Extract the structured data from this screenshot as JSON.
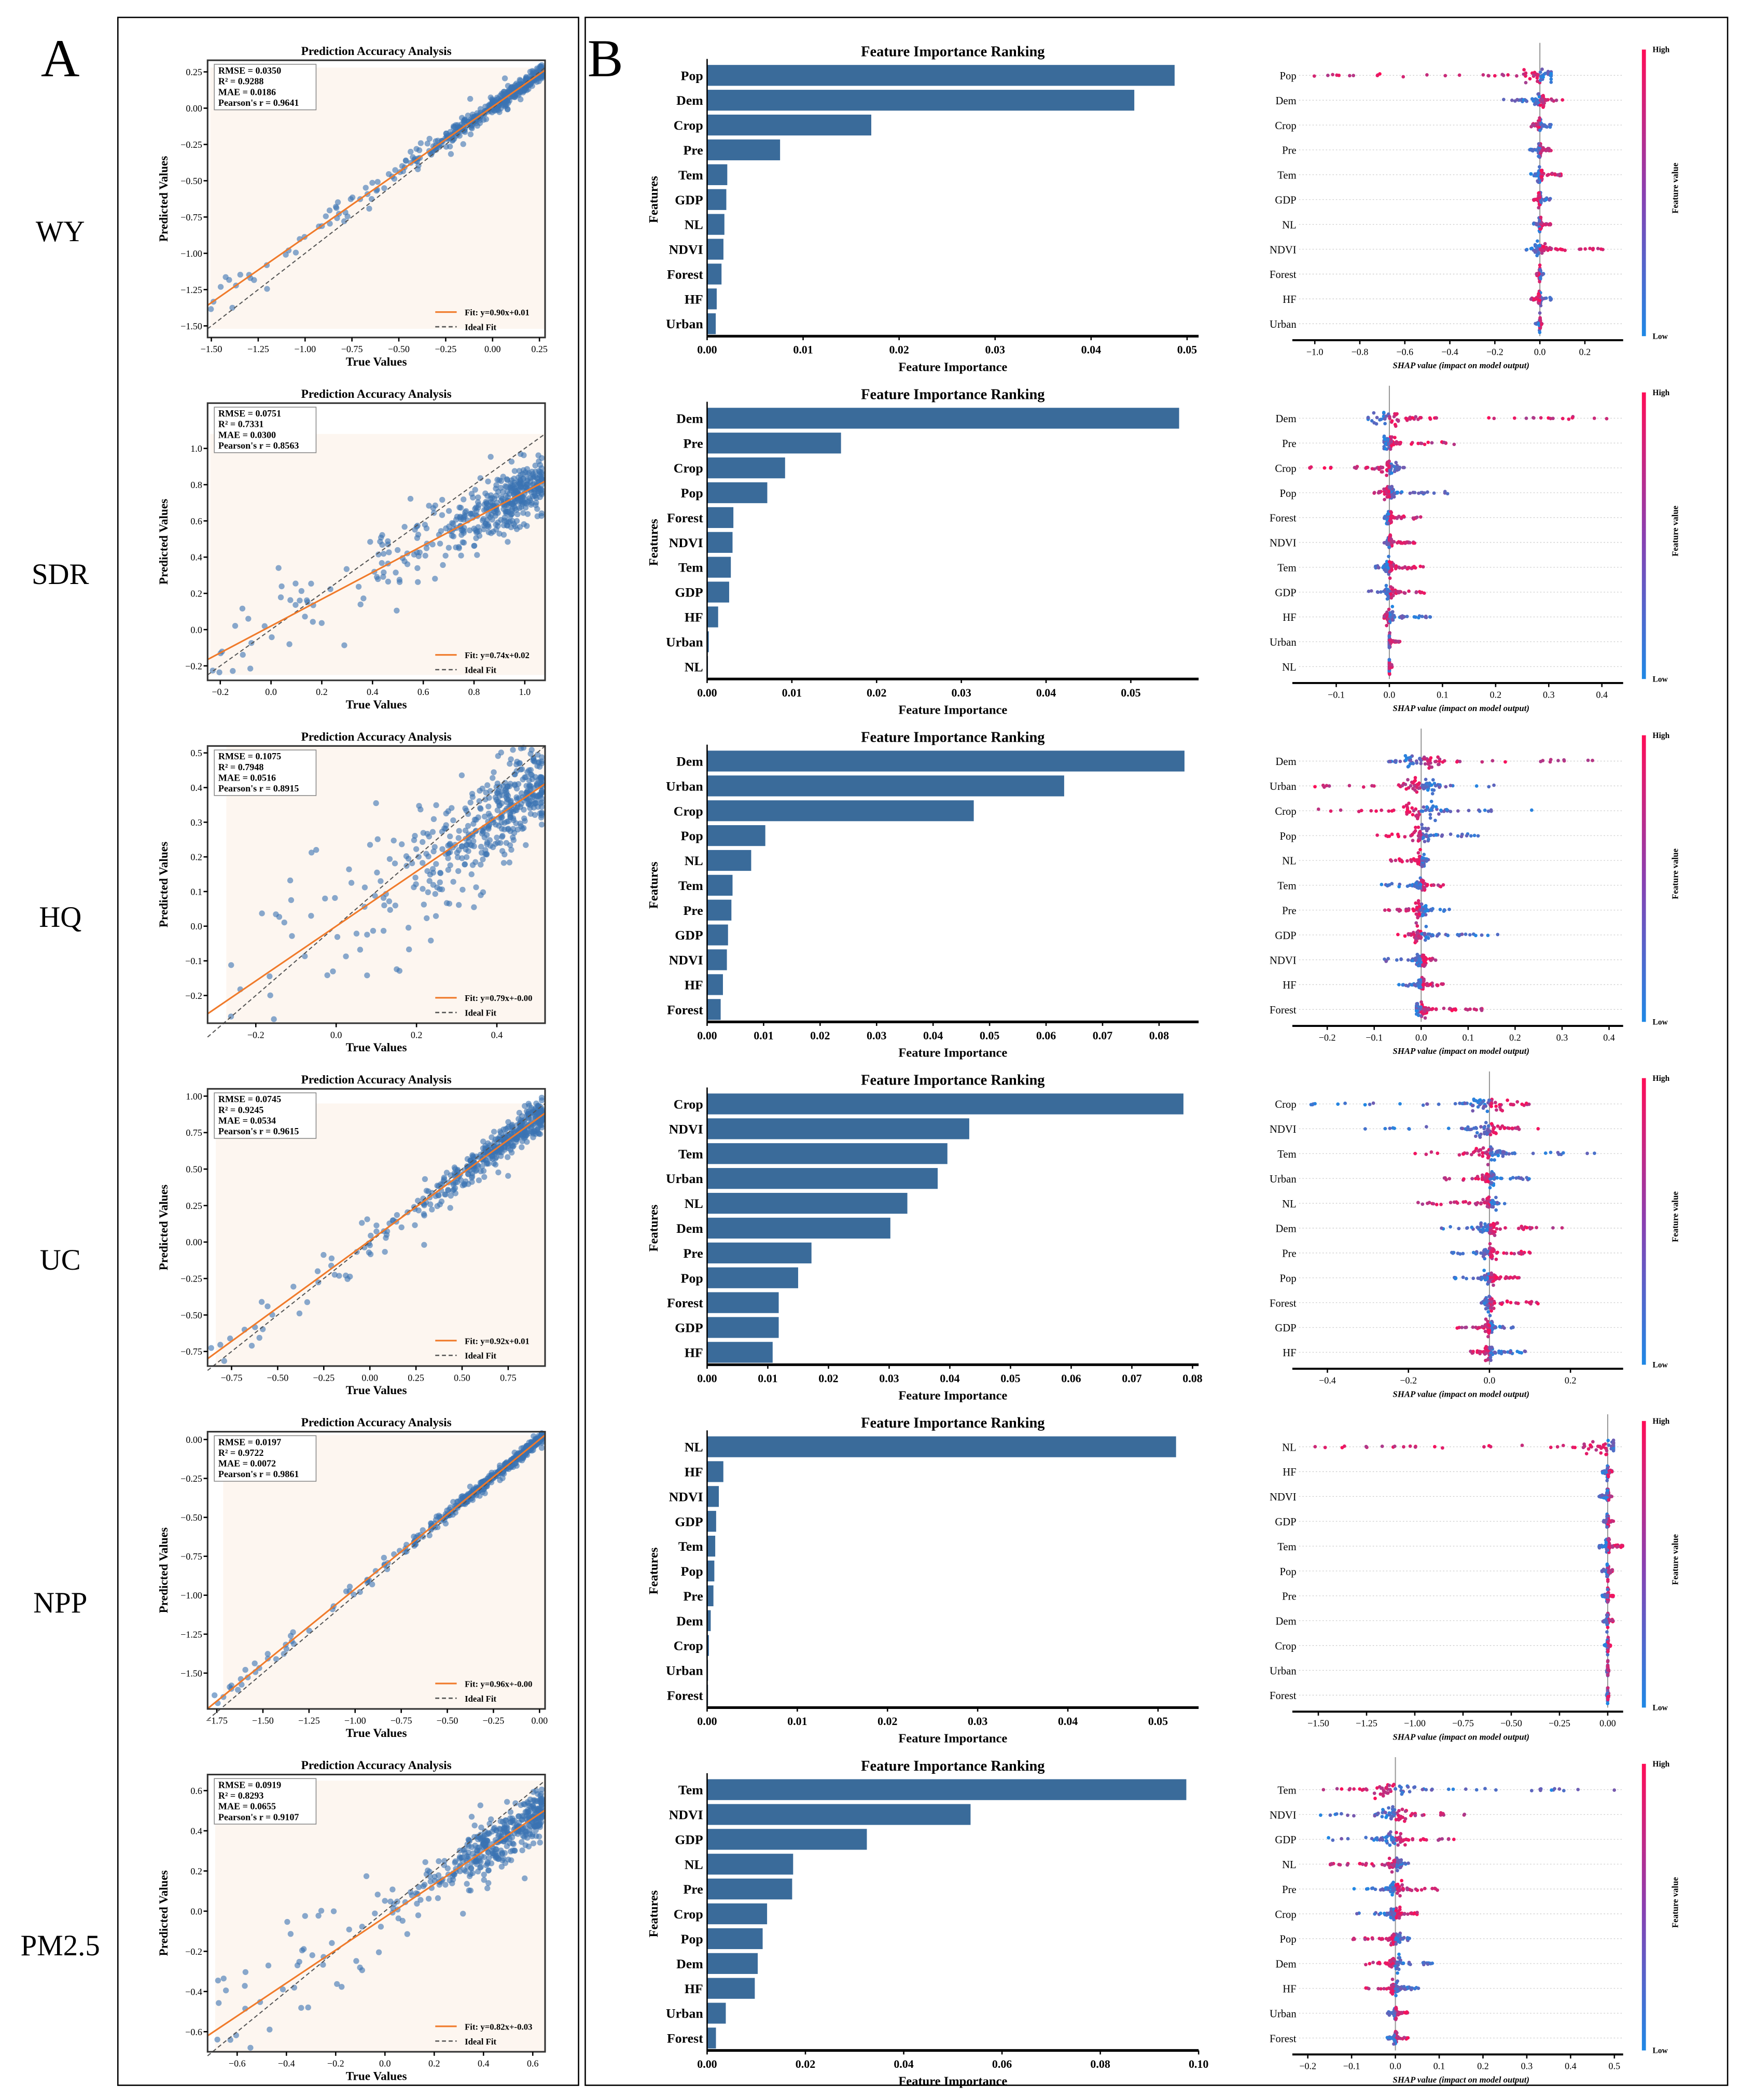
{
  "panel_labels": {
    "a": "A",
    "b": "B"
  },
  "common": {
    "scatter_title": "Prediction Accuracy Analysis",
    "scatter_xlabel": "True Values",
    "scatter_ylabel": "Predicted Values",
    "ideal_label": "Ideal Fit",
    "bar_title": "Feature Importance Ranking",
    "bar_xlabel": "Feature Importance",
    "bar_ylabel": "Features",
    "shap_xlabel": "SHAP value (impact on model output)",
    "colorbar_high": "High",
    "colorbar_low": "Low",
    "colorbar_label": "Feature value"
  },
  "colors": {
    "bar": "#3a6b9a",
    "point": "#3b73b3",
    "fit": "#f07a2a",
    "ideal": "#555555",
    "shap_low": "#1e88e5",
    "shap_high": "#ff0d57",
    "plot_bg": "#fdf6f0"
  },
  "chart_data": [
    {
      "row_label": "WY",
      "type": "scatter",
      "stats": [
        "RMSE = 0.0350",
        "R² = 0.9288",
        "MAE = 0.0186",
        "Pearson's r = 0.9641"
      ],
      "fit": {
        "slope": 0.9,
        "intercept": 0.01,
        "label": "Fit: y=0.90x+0.01"
      },
      "xlim": [
        -1.52,
        0.28
      ],
      "ylim": [
        -1.58,
        0.33
      ],
      "xticks": [
        -1.5,
        -1.25,
        -1.0,
        -0.75,
        -0.5,
        -0.25,
        0.0,
        0.25
      ],
      "yticks": [
        -1.5,
        -1.25,
        -1.0,
        -0.75,
        -0.5,
        -0.25,
        0.0,
        0.25
      ],
      "tick_decimals": 2,
      "spread": 0.05,
      "importance": {
        "features": [
          "Pop",
          "Dem",
          "Crop",
          "Pre",
          "Tem",
          "GDP",
          "NL",
          "NDVI",
          "Forest",
          "HF",
          "Urban"
        ],
        "values": [
          0.0487,
          0.0445,
          0.0171,
          0.0076,
          0.0021,
          0.002,
          0.0018,
          0.0017,
          0.0015,
          0.001,
          0.0009
        ],
        "xlim": [
          0,
          0.0512
        ],
        "xticks": [
          0,
          0.01,
          0.02,
          0.03,
          0.04,
          0.05
        ],
        "tick_decimals": 2
      },
      "shap": {
        "features": [
          "Pop",
          "Dem",
          "Crop",
          "Pre",
          "Tem",
          "GDP",
          "NL",
          "NDVI",
          "Forest",
          "HF",
          "Urban"
        ],
        "ranges": [
          [
            -1.02,
            0.05
          ],
          [
            -0.17,
            0.12
          ],
          [
            -0.04,
            0.05
          ],
          [
            -0.05,
            0.05
          ],
          [
            -0.04,
            0.1
          ],
          [
            -0.03,
            0.05
          ],
          [
            -0.03,
            0.05
          ],
          [
            -0.06,
            0.3
          ],
          [
            -0.02,
            0.02
          ],
          [
            -0.04,
            0.05
          ],
          [
            -0.02,
            0.01
          ]
        ],
        "high_side": [
          "-",
          "+",
          "-",
          "+",
          "+",
          "-",
          "+",
          "+",
          "-",
          "-",
          "+"
        ],
        "xlim": [
          -1.07,
          0.37
        ],
        "xticks": [
          -1.0,
          -0.8,
          -0.6,
          -0.4,
          -0.2,
          0.0,
          0.2
        ],
        "tick_decimals": 1
      }
    },
    {
      "row_label": "SDR",
      "type": "scatter",
      "stats": [
        "RMSE = 0.0751",
        "R² = 0.7331",
        "MAE = 0.0300",
        "Pearson's r = 0.8563"
      ],
      "fit": {
        "slope": 0.74,
        "intercept": 0.02,
        "label": "Fit: y=0.74x+0.02"
      },
      "xlim": [
        -0.25,
        1.08
      ],
      "ylim": [
        -0.28,
        1.25
      ],
      "xticks": [
        -0.2,
        0.0,
        0.2,
        0.4,
        0.6,
        0.8,
        1.0
      ],
      "yticks": [
        -0.2,
        0.0,
        0.2,
        0.4,
        0.6,
        0.8,
        1.0
      ],
      "tick_decimals": 1,
      "spread": 0.13,
      "importance": {
        "features": [
          "Dem",
          "Pre",
          "Crop",
          "Pop",
          "Forest",
          "NDVI",
          "Tem",
          "GDP",
          "HF",
          "Urban",
          "NL"
        ],
        "values": [
          0.0557,
          0.0158,
          0.0092,
          0.0071,
          0.0031,
          0.003,
          0.0028,
          0.0026,
          0.0013,
          0.0002,
          0.0001
        ],
        "xlim": [
          0,
          0.058
        ],
        "xticks": [
          0,
          0.01,
          0.02,
          0.03,
          0.04,
          0.05
        ],
        "tick_decimals": 2
      },
      "shap": {
        "features": [
          "Dem",
          "Pre",
          "Crop",
          "Pop",
          "Forest",
          "NDVI",
          "Tem",
          "GDP",
          "HF",
          "Urban",
          "NL"
        ],
        "ranges": [
          [
            -0.04,
            0.41
          ],
          [
            -0.01,
            0.13
          ],
          [
            -0.15,
            0.04
          ],
          [
            -0.03,
            0.11
          ],
          [
            -0.01,
            0.06
          ],
          [
            -0.01,
            0.05
          ],
          [
            -0.03,
            0.07
          ],
          [
            -0.04,
            0.07
          ],
          [
            -0.01,
            0.08
          ],
          [
            0.0,
            0.02
          ],
          [
            0.0,
            0.005
          ]
        ],
        "high_side": [
          "+",
          "+",
          "-",
          "-",
          "+",
          "+",
          "+",
          "+",
          "-",
          "+",
          "+"
        ],
        "xlim": [
          -0.17,
          0.44
        ],
        "xticks": [
          -0.1,
          0.0,
          0.1,
          0.2,
          0.3,
          0.4
        ],
        "tick_decimals": 1
      }
    },
    {
      "row_label": "HQ",
      "type": "scatter",
      "stats": [
        "RMSE = 0.1075",
        "R² = 0.7948",
        "MAE = 0.0516",
        "Pearson's r = 0.8915"
      ],
      "fit": {
        "slope": 0.79,
        "intercept": 0.0,
        "label": "Fit: y=0.79x+-0.00"
      },
      "xlim": [
        -0.32,
        0.52
      ],
      "ylim": [
        -0.28,
        0.52
      ],
      "xticks": [
        -0.2,
        0.0,
        0.2,
        0.4
      ],
      "yticks": [
        -0.2,
        -0.1,
        0.0,
        0.1,
        0.2,
        0.3,
        0.4,
        0.5
      ],
      "tick_decimals": 1,
      "spread": 0.12,
      "importance": {
        "features": [
          "Dem",
          "Urban",
          "Crop",
          "Pop",
          "NL",
          "Tem",
          "Pre",
          "GDP",
          "NDVI",
          "HF",
          "Forest"
        ],
        "values": [
          0.0845,
          0.0632,
          0.0472,
          0.0103,
          0.0078,
          0.0045,
          0.0043,
          0.0037,
          0.0035,
          0.0028,
          0.0024
        ],
        "xlim": [
          0,
          0.087
        ],
        "xticks": [
          0,
          0.01,
          0.02,
          0.03,
          0.04,
          0.05,
          0.06,
          0.07,
          0.08
        ],
        "tick_decimals": 2
      },
      "shap": {
        "features": [
          "Dem",
          "Urban",
          "Crop",
          "Pop",
          "NL",
          "Tem",
          "Pre",
          "GDP",
          "NDVI",
          "HF",
          "Forest"
        ],
        "ranges": [
          [
            -0.13,
            0.41
          ],
          [
            -0.23,
            0.17
          ],
          [
            -0.24,
            0.27
          ],
          [
            -0.1,
            0.13
          ],
          [
            -0.07,
            0.02
          ],
          [
            -0.09,
            0.05
          ],
          [
            -0.08,
            0.07
          ],
          [
            -0.06,
            0.19
          ],
          [
            -0.08,
            0.05
          ],
          [
            -0.05,
            0.05
          ],
          [
            -0.01,
            0.14
          ]
        ],
        "high_side": [
          "+",
          "-",
          "-",
          "-",
          "-",
          "+",
          "-",
          "-",
          "+",
          "+",
          "+"
        ],
        "xlim": [
          -0.26,
          0.43
        ],
        "xticks": [
          -0.2,
          -0.1,
          0.0,
          0.1,
          0.2,
          0.3,
          0.4
        ],
        "tick_decimals": 1
      }
    },
    {
      "row_label": "UC",
      "type": "scatter",
      "stats": [
        "RMSE = 0.0745",
        "R² = 0.9245",
        "MAE = 0.0534",
        "Pearson's r = 0.9615"
      ],
      "fit": {
        "slope": 0.92,
        "intercept": 0.01,
        "label": "Fit: y=0.92x+0.01"
      },
      "xlim": [
        -0.88,
        0.95
      ],
      "ylim": [
        -0.85,
        1.05
      ],
      "xticks": [
        -0.75,
        -0.5,
        -0.25,
        0.0,
        0.25,
        0.5,
        0.75
      ],
      "yticks": [
        -0.75,
        -0.5,
        -0.25,
        0.0,
        0.25,
        0.5,
        0.75,
        1.0
      ],
      "tick_decimals": 2,
      "spread": 0.09,
      "importance": {
        "features": [
          "Crop",
          "NDVI",
          "Tem",
          "Urban",
          "NL",
          "Dem",
          "Pre",
          "Pop",
          "Forest",
          "GDP",
          "HF"
        ],
        "values": [
          0.0785,
          0.0432,
          0.0396,
          0.038,
          0.033,
          0.0302,
          0.0172,
          0.015,
          0.0118,
          0.0118,
          0.0108
        ],
        "xlim": [
          0,
          0.081
        ],
        "xticks": [
          0,
          0.01,
          0.02,
          0.03,
          0.04,
          0.05,
          0.06,
          0.07,
          0.08
        ],
        "tick_decimals": 2
      },
      "shap": {
        "features": [
          "Crop",
          "NDVI",
          "Tem",
          "Urban",
          "NL",
          "Dem",
          "Pre",
          "Pop",
          "Forest",
          "GDP",
          "HF"
        ],
        "ranges": [
          [
            -0.45,
            0.15
          ],
          [
            -0.31,
            0.12
          ],
          [
            -0.2,
            0.3
          ],
          [
            -0.12,
            0.1
          ],
          [
            -0.18,
            0.05
          ],
          [
            -0.12,
            0.18
          ],
          [
            -0.11,
            0.11
          ],
          [
            -0.1,
            0.08
          ],
          [
            -0.02,
            0.12
          ],
          [
            -0.08,
            0.06
          ],
          [
            -0.05,
            0.09
          ]
        ],
        "high_side": [
          "+",
          "+",
          "-",
          "-",
          "-",
          "+",
          "+",
          "+",
          "+",
          "-",
          "-"
        ],
        "xlim": [
          -0.47,
          0.33
        ],
        "xticks": [
          -0.4,
          -0.2,
          0.0,
          0.2
        ],
        "tick_decimals": 1
      }
    },
    {
      "row_label": "NPP",
      "type": "scatter",
      "stats": [
        "RMSE = 0.0197",
        "R² = 0.9722",
        "MAE = 0.0072",
        "Pearson's r = 0.9861"
      ],
      "fit": {
        "slope": 0.96,
        "intercept": 0.0,
        "label": "Fit: y=0.96x+-0.00"
      },
      "xlim": [
        -1.8,
        0.03
      ],
      "ylim": [
        -1.73,
        0.05
      ],
      "xticks": [
        -1.75,
        -1.5,
        -1.25,
        -1.0,
        -0.75,
        -0.5,
        -0.25,
        0.0
      ],
      "yticks": [
        -1.5,
        -1.25,
        -1.0,
        -0.75,
        -0.5,
        -0.25,
        0.0
      ],
      "tick_decimals": 2,
      "spread": 0.03,
      "importance": {
        "features": [
          "NL",
          "HF",
          "NDVI",
          "GDP",
          "Tem",
          "Pop",
          "Pre",
          "Dem",
          "Crop",
          "Urban",
          "Forest"
        ],
        "values": [
          0.052,
          0.0018,
          0.0013,
          0.001,
          0.0009,
          0.0008,
          0.0007,
          0.0004,
          0.0002,
          0.0001,
          0.0001
        ],
        "xlim": [
          0,
          0.0545
        ],
        "xticks": [
          0,
          0.01,
          0.02,
          0.03,
          0.04,
          0.05
        ],
        "tick_decimals": 2
      },
      "shap": {
        "features": [
          "NL",
          "HF",
          "NDVI",
          "GDP",
          "Tem",
          "Pop",
          "Pre",
          "Dem",
          "Crop",
          "Urban",
          "Forest"
        ],
        "ranges": [
          [
            -1.52,
            0.03
          ],
          [
            -0.03,
            0.03
          ],
          [
            -0.05,
            0.03
          ],
          [
            -0.03,
            0.03
          ],
          [
            -0.05,
            0.08
          ],
          [
            -0.03,
            0.03
          ],
          [
            -0.03,
            0.03
          ],
          [
            -0.03,
            0.03
          ],
          [
            -0.02,
            0.02
          ],
          [
            -0.005,
            0.005
          ],
          [
            -0.005,
            0.005
          ]
        ],
        "high_side": [
          "-",
          "+",
          "+",
          "+",
          "+",
          "+",
          "+",
          "+",
          "+",
          "+",
          "+"
        ],
        "xlim": [
          -1.6,
          0.08
        ],
        "xticks": [
          -1.5,
          -1.25,
          -1.0,
          -0.75,
          -0.5,
          -0.25,
          0.0
        ],
        "tick_decimals": 2
      }
    },
    {
      "row_label": "PM2.5",
      "type": "scatter",
      "stats": [
        "RMSE = 0.0919",
        "R² = 0.8293",
        "MAE = 0.0655",
        "Pearson's r = 0.9107"
      ],
      "fit": {
        "slope": 0.82,
        "intercept": -0.03,
        "label": "Fit: y=0.82x+-0.03"
      },
      "xlim": [
        -0.72,
        0.65
      ],
      "ylim": [
        -0.7,
        0.68
      ],
      "xticks": [
        -0.6,
        -0.4,
        -0.2,
        0.0,
        0.2,
        0.4,
        0.6
      ],
      "yticks": [
        -0.6,
        -0.4,
        -0.2,
        0.0,
        0.2,
        0.4,
        0.6
      ],
      "tick_decimals": 1,
      "spread": 0.1,
      "importance": {
        "features": [
          "Tem",
          "NDVI",
          "GDP",
          "NL",
          "Pre",
          "Crop",
          "Pop",
          "Dem",
          "HF",
          "Urban",
          "Forest"
        ],
        "values": [
          0.0975,
          0.0536,
          0.0325,
          0.0175,
          0.0173,
          0.0122,
          0.0113,
          0.0103,
          0.0097,
          0.0038,
          0.0018
        ],
        "xlim": [
          0,
          0.1
        ],
        "xticks": [
          0,
          0.02,
          0.04,
          0.06,
          0.08,
          0.1
        ],
        "tick_decimals": 2
      },
      "shap": {
        "features": [
          "Tem",
          "NDVI",
          "GDP",
          "NL",
          "Pre",
          "Crop",
          "Pop",
          "Dem",
          "HF",
          "Urban",
          "Forest"
        ],
        "ranges": [
          [
            -0.2,
            0.5
          ],
          [
            -0.18,
            0.22
          ],
          [
            -0.16,
            0.15
          ],
          [
            -0.16,
            0.03
          ],
          [
            -0.1,
            0.1
          ],
          [
            -0.1,
            0.05
          ],
          [
            -0.1,
            0.05
          ],
          [
            -0.08,
            0.09
          ],
          [
            -0.07,
            0.07
          ],
          [
            -0.02,
            0.03
          ],
          [
            -0.02,
            0.03
          ]
        ],
        "high_side": [
          "-",
          "+",
          "+",
          "-",
          "+",
          "+",
          "-",
          "-",
          "-",
          "+",
          "+"
        ],
        "xlim": [
          -0.22,
          0.52
        ],
        "xticks": [
          -0.2,
          -0.1,
          0.0,
          0.1,
          0.2,
          0.3,
          0.4,
          0.5
        ],
        "tick_decimals": 1
      }
    }
  ]
}
